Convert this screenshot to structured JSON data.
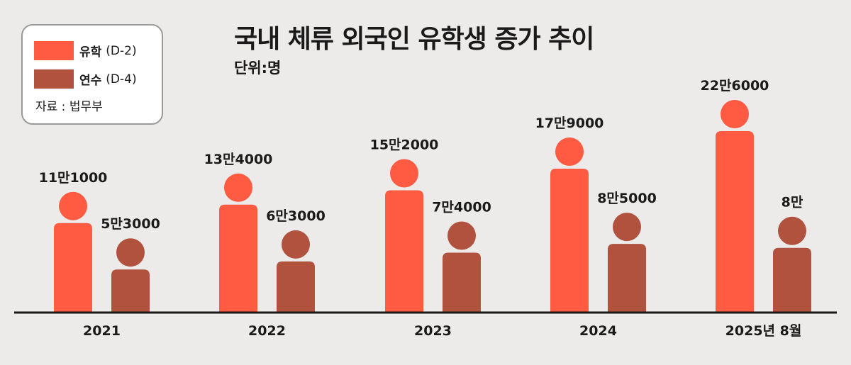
{
  "title": "국내 체류 외국인 유학생 증가 추이",
  "unit": "단위:명",
  "legend": {
    "items": [
      {
        "name": "유학",
        "code": "(D-2)",
        "color": "#ff5a42"
      },
      {
        "name": "연수",
        "code": "(D-4)",
        "color": "#b0523d"
      }
    ],
    "source": "자료 : 법무부"
  },
  "chart_data": {
    "type": "bar",
    "categories": [
      "2021",
      "2022",
      "2023",
      "2024",
      "2025년 8월"
    ],
    "series": [
      {
        "name": "유학 (D-2)",
        "color": "#ff5a42",
        "values": [
          111000,
          134000,
          152000,
          179000,
          226000
        ],
        "labels": [
          "11만1000",
          "13만4000",
          "15만2000",
          "17만9000",
          "22만6000"
        ]
      },
      {
        "name": "연수 (D-4)",
        "color": "#b0523d",
        "values": [
          53000,
          63000,
          74000,
          85000,
          80000
        ],
        "labels": [
          "5만3000",
          "6만3000",
          "7만4000",
          "8만5000",
          "8만"
        ]
      }
    ],
    "ylim": [
      0,
      226000
    ],
    "axis_color": "#1a1a1a",
    "grid": false,
    "legend_position": "top-left"
  }
}
